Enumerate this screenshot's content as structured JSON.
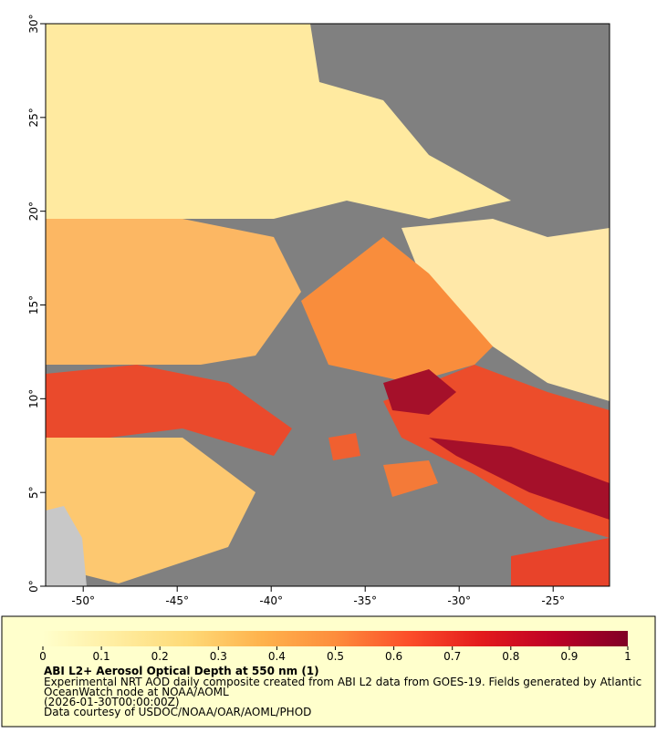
{
  "map": {
    "xlim": [
      -52,
      -22
    ],
    "ylim": [
      0,
      30
    ],
    "xticks": [
      {
        "value": -50,
        "label": "-50°"
      },
      {
        "value": -45,
        "label": "-45°"
      },
      {
        "value": -40,
        "label": "-40°"
      },
      {
        "value": -35,
        "label": "-35°"
      },
      {
        "value": -30,
        "label": "-30°"
      },
      {
        "value": -25,
        "label": "-25°"
      }
    ],
    "yticks": [
      {
        "value": 0,
        "label": "0°"
      },
      {
        "value": 5,
        "label": "5°"
      },
      {
        "value": 10,
        "label": "10°"
      },
      {
        "value": 15,
        "label": "15°"
      },
      {
        "value": 20,
        "label": "20°"
      },
      {
        "value": 25,
        "label": "25°"
      },
      {
        "value": 30,
        "label": "30°"
      }
    ]
  },
  "colorbar": {
    "range": [
      0,
      1
    ],
    "ticks": [
      0,
      0.1,
      0.2,
      0.3,
      0.4,
      0.5,
      0.6,
      0.7,
      0.8,
      0.9,
      1
    ],
    "colors": [
      "#ffffcc",
      "#ffeda0",
      "#fed976",
      "#feb24c",
      "#fd8d3c",
      "#fc4e2a",
      "#e31a1c",
      "#bd0026",
      "#800026"
    ]
  },
  "caption": {
    "title": "ABI L2+ Aerosol Optical Depth at 550 nm (1)",
    "lines": [
      "Experimental NRT AOD daily composite created from ABI L2 data from GOES-19. Fields generated by Atlantic",
      "OceanWatch node at NOAA/AOML",
      "(2026-01-30T00:00:00Z)",
      "Data courtesy of USDOC/NOAA/OAR/AOML/PHOD"
    ]
  }
}
